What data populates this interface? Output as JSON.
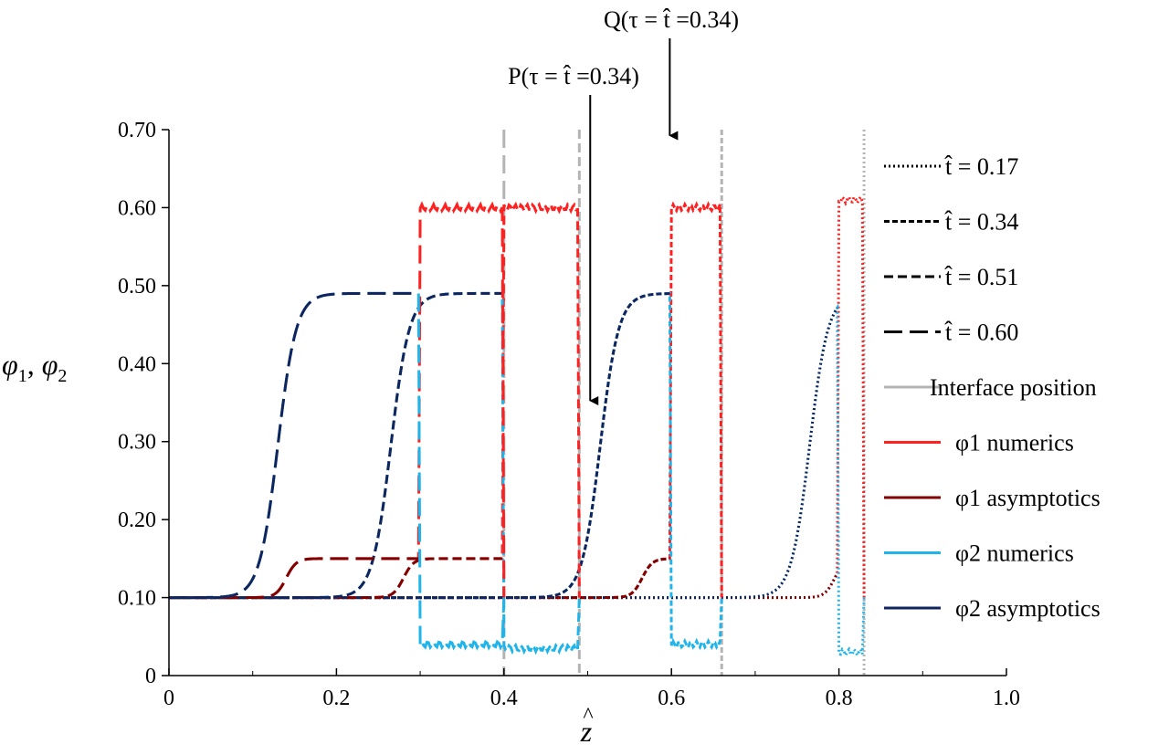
{
  "chart_data": {
    "type": "line",
    "title": "",
    "xlabel": "ẑ",
    "ylabel": "φ1, φ2",
    "xlim": [
      0,
      1.0
    ],
    "ylim": [
      0,
      0.7
    ],
    "x_ticks": [
      0,
      0.2,
      0.4,
      0.6,
      0.8,
      1.0
    ],
    "x_tick_labels": [
      "0",
      "0.2",
      "0.4",
      "0.6",
      "0.8",
      "1.0"
    ],
    "y_ticks": [
      0,
      0.1,
      0.2,
      0.3,
      0.4,
      0.5,
      0.6,
      0.7
    ],
    "y_tick_labels": [
      "0",
      "0.10",
      "0.20",
      "0.30",
      "0.40",
      "0.50",
      "0.60",
      "0.70"
    ],
    "grid": false,
    "legend_position": "right",
    "colors": {
      "phi1_numerics": "#ff2020",
      "phi1_asymptotics": "#800000",
      "phi2_numerics": "#1fb4ea",
      "phi2_asymptotics": "#10245e",
      "interface": "#b4b4b4"
    },
    "times": [
      {
        "t": "0.17",
        "dash": "dotted",
        "interface_z": 0.83,
        "phi1_front": 0.795,
        "phi1_high_start": 0.8,
        "phi1_plateau": 0.15,
        "phi1_high": 0.61,
        "phi2_front": 0.765,
        "phi2_plateau": 0.49,
        "phi2_low": 0.03
      },
      {
        "t": "0.34",
        "dash": "short-dash",
        "interface_z": 0.66,
        "phi1_front": 0.565,
        "phi1_high_start": 0.6,
        "phi1_plateau": 0.15,
        "phi1_high": 0.6,
        "phi2_front": 0.515,
        "phi2_plateau": 0.49,
        "phi2_low": 0.04
      },
      {
        "t": "0.51",
        "dash": "medium-dash",
        "interface_z": 0.49,
        "phi1_front": 0.28,
        "phi1_high_start": 0.4,
        "phi1_plateau": 0.15,
        "phi1_high": 0.6,
        "phi2_front": 0.265,
        "phi2_plateau": 0.49,
        "phi2_low": 0.035
      },
      {
        "t": "0.60",
        "dash": "long-dash",
        "interface_z": 0.4,
        "phi1_front": 0.14,
        "phi1_high_start": 0.3,
        "phi1_plateau": 0.15,
        "phi1_high": 0.6,
        "phi2_front": 0.13,
        "phi2_plateau": 0.49,
        "phi2_low": 0.04
      }
    ],
    "legend": {
      "t_prefix": "t̂ = ",
      "t_values": [
        "0.17",
        "0.34",
        "0.51",
        "0.60"
      ],
      "interface": "Interface position",
      "phi1_numerics": "φ1 numerics",
      "phi1_asymptotics": "φ1 asymptotics",
      "phi2_numerics": "φ2 numerics",
      "phi2_asymptotics": "φ2 asymptotics"
    },
    "annotations": [
      {
        "label": "P(τ = t̂ =0.34)",
        "z": 0.503,
        "y": 0.35
      },
      {
        "label": "Q(τ = t̂ =0.34)",
        "z": 0.598,
        "y": 0.69
      }
    ]
  }
}
